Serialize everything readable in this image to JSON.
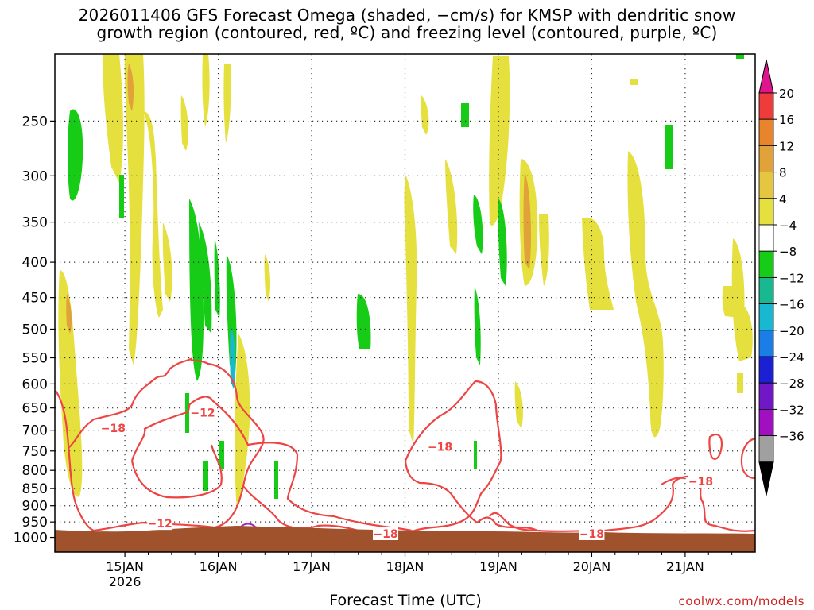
{
  "title_line1": "2026011406 GFS Forecast Omega (shaded, −cm/s) for KMSP with dendritic snow",
  "title_line2": "growth region (contoured, red, ºC) and freezing level (contoured, purple, ºC)",
  "x_title": "Forecast Time (UTC)",
  "credit": "coolwx.com/models",
  "chart_data": {
    "type": "heatmap",
    "variable": "Omega (−cm/s)",
    "y_axis": {
      "unit": "hPa",
      "log_scale": true,
      "range": [
        1050,
        200
      ],
      "ticks": [
        250,
        300,
        350,
        400,
        450,
        500,
        550,
        600,
        650,
        700,
        750,
        800,
        850,
        900,
        950,
        1000
      ]
    },
    "x_axis": {
      "range": [
        "2026-01-14T06",
        "2026-01-21T18"
      ],
      "ticks": [
        {
          "t": "2026-01-15",
          "label": "15JAN",
          "sub": "2026"
        },
        {
          "t": "2026-01-16",
          "label": "16JAN",
          "sub": ""
        },
        {
          "t": "2026-01-17",
          "label": "17JAN",
          "sub": ""
        },
        {
          "t": "2026-01-18",
          "label": "18JAN",
          "sub": ""
        },
        {
          "t": "2026-01-19",
          "label": "19JAN",
          "sub": ""
        },
        {
          "t": "2026-01-20",
          "label": "20JAN",
          "sub": ""
        },
        {
          "t": "2026-01-21",
          "label": "21JAN",
          "sub": ""
        }
      ]
    },
    "grid": true,
    "colorbar": [
      {
        "label": "20",
        "color": "#ee3c3c"
      },
      {
        "label": "16",
        "color": "#e8842c"
      },
      {
        "label": "12",
        "color": "#e2a23a"
      },
      {
        "label": "8",
        "color": "#e4c640"
      },
      {
        "label": "4",
        "color": "#e6e03e"
      },
      {
        "label": "−4",
        "color": "#ffffff"
      },
      {
        "label": "−8",
        "color": "#16cc16"
      },
      {
        "label": "−12",
        "color": "#18b890"
      },
      {
        "label": "−16",
        "color": "#18b8d0"
      },
      {
        "label": "−20",
        "color": "#1a7ee6"
      },
      {
        "label": "−24",
        "color": "#1c20d4"
      },
      {
        "label": "−28",
        "color": "#7018c8"
      },
      {
        "label": "−32",
        "color": "#a010c0"
      },
      {
        "label": "−36",
        "color": "#a0a0a0"
      }
    ],
    "colorbar_top_color": "#e0148c",
    "colorbar_bottom_color": "#000000",
    "contour_labels": [
      {
        "text": "−18",
        "t": "2026-01-14T21",
        "p": 695
      },
      {
        "text": "−12",
        "t": "2026-01-15T20",
        "p": 660
      },
      {
        "text": "−12",
        "t": "2026-01-15T09",
        "p": 955
      },
      {
        "text": "−18",
        "t": "2026-01-17T19",
        "p": 988
      },
      {
        "text": "−18",
        "t": "2026-01-18T09",
        "p": 740
      },
      {
        "text": "−18",
        "t": "2026-01-20T00",
        "p": 988
      },
      {
        "text": "−18",
        "t": "2026-01-21T04",
        "p": 830
      }
    ],
    "colors": {
      "dgz_contour": "#ee4444",
      "freezing_level": "#a020c0",
      "ground": "#a0522d"
    }
  }
}
